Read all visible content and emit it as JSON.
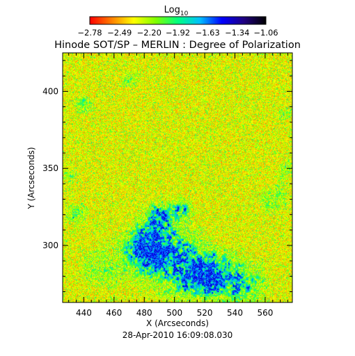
{
  "chart_data": {
    "type": "heatmap",
    "title": "Hinode SOT/SP – MERLIN : Degree of Polarization",
    "colorbar": {
      "label_base": "Log",
      "label_sub": "10",
      "ticks": [
        -2.78,
        -2.49,
        -2.2,
        -1.92,
        -1.63,
        -1.34,
        -1.06
      ],
      "tick_labels": [
        "−2.78",
        "−2.49",
        "−2.20",
        "−1.92",
        "−1.63",
        "−1.34",
        "−1.06"
      ],
      "range": [
        -2.78,
        -1.06
      ],
      "colormap": [
        "#ff0000",
        "#ff8000",
        "#ffff00",
        "#80ff00",
        "#00ff80",
        "#00c0ff",
        "#0000ff",
        "#200080",
        "#000000"
      ]
    },
    "x_axis": {
      "label": "X (Arcseconds)",
      "range": [
        426,
        578
      ],
      "ticks": [
        440,
        460,
        480,
        500,
        520,
        540,
        560
      ],
      "minor_step": 5
    },
    "y_axis": {
      "label": "Y (Arcseconds)",
      "range": [
        263,
        425
      ],
      "ticks": [
        300,
        350,
        400
      ],
      "minor_step": 10
    },
    "timestamp": "28-Apr-2010 16:09:08.030",
    "map_description_regions": [
      {
        "x": 500,
        "y": 290,
        "r": 35,
        "strength": 1.0
      },
      {
        "x": 480,
        "y": 300,
        "r": 20,
        "strength": 0.9
      },
      {
        "x": 450,
        "y": 285,
        "r": 20,
        "strength": 0.7
      },
      {
        "x": 435,
        "y": 320,
        "r": 12,
        "strength": 0.8
      },
      {
        "x": 545,
        "y": 275,
        "r": 25,
        "strength": 0.9
      },
      {
        "x": 520,
        "y": 280,
        "r": 18,
        "strength": 0.8
      },
      {
        "x": 565,
        "y": 330,
        "r": 14,
        "strength": 0.8
      },
      {
        "x": 575,
        "y": 350,
        "r": 10,
        "strength": 0.8
      },
      {
        "x": 440,
        "y": 392,
        "r": 10,
        "strength": 0.8
      },
      {
        "x": 470,
        "y": 408,
        "r": 10,
        "strength": 0.7
      },
      {
        "x": 490,
        "y": 320,
        "r": 12,
        "strength": 0.8
      },
      {
        "x": 505,
        "y": 325,
        "r": 10,
        "strength": 0.7
      },
      {
        "x": 572,
        "y": 385,
        "r": 8,
        "strength": 0.7
      },
      {
        "x": 430,
        "y": 345,
        "r": 8,
        "strength": 0.7
      }
    ]
  }
}
